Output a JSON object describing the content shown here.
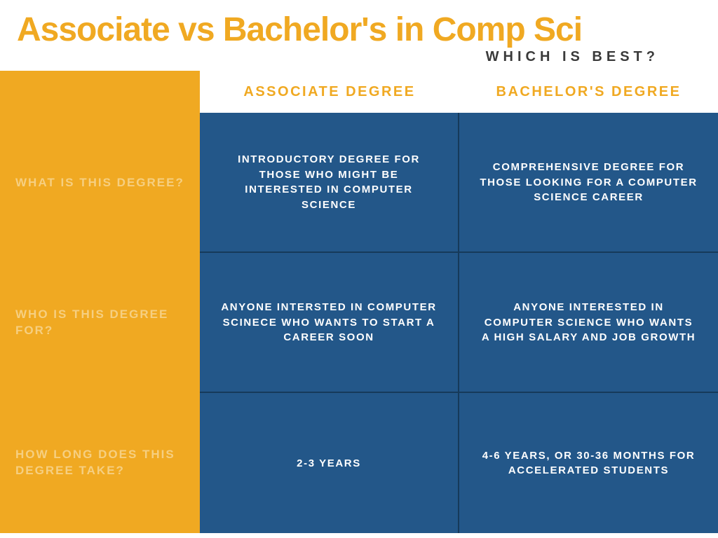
{
  "colors": {
    "orange": "#f0a922",
    "blue": "#235789",
    "dark_text": "#3a3a3a",
    "white": "#ffffff",
    "row_label": "#f6cf81",
    "cell_border": "#163a5a",
    "title_orange": "#f0a922"
  },
  "title": "Associate vs Bachelor's in Comp Sci",
  "subtitle": "WHICH IS BEST?",
  "columns": {
    "associate": "ASSOCIATE DEGREE",
    "bachelor": "BACHELOR'S DEGREE"
  },
  "rows": [
    {
      "label": "WHAT IS THIS DEGREE?",
      "associate": "INTRODUCTORY DEGREE FOR THOSE WHO MIGHT BE INTERESTED IN COMPUTER SCIENCE",
      "bachelor": "COMPREHENSIVE DEGREE FOR THOSE LOOKING FOR A COMPUTER SCIENCE CAREER"
    },
    {
      "label": "WHO IS THIS DEGREE FOR?",
      "associate": "ANYONE INTERSTED IN COMPUTER SCINECE WHO WANTS TO START A CAREER SOON",
      "bachelor": "ANYONE INTERESTED IN COMPUTER SCIENCE WHO WANTS A HIGH SALARY AND JOB GROWTH"
    },
    {
      "label": "HOW LONG DOES THIS DEGREE TAKE?",
      "associate": "2-3 YEARS",
      "bachelor": "4-6 YEARS, OR 30-36 MONTHS FOR ACCELERATED STUDENTS"
    }
  ]
}
